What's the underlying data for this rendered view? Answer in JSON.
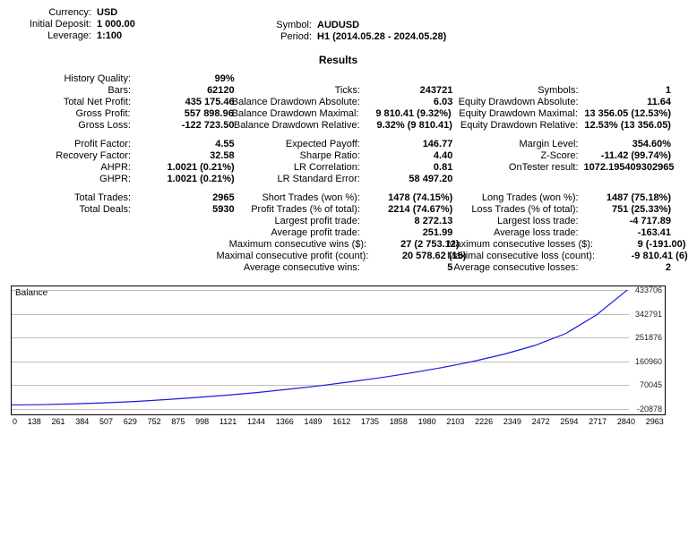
{
  "header": {
    "left": [
      {
        "label": "Currency:",
        "value": "USD"
      },
      {
        "label": "Initial Deposit:",
        "value": "1 000.00"
      },
      {
        "label": "Leverage:",
        "value": "1:100"
      }
    ],
    "mid": [
      {
        "label": "Symbol:",
        "value": "AUDUSD"
      },
      {
        "label": "Period:",
        "value": "H1 (2014.05.28 - 2024.05.28)"
      }
    ]
  },
  "results_title": "Results",
  "rows": [
    [
      {
        "l": "History Quality:",
        "v": "99%"
      },
      {
        "l": "",
        "v": ""
      },
      {
        "l": "",
        "v": ""
      }
    ],
    [
      {
        "l": "Bars:",
        "v": "62120"
      },
      {
        "l": "Ticks:",
        "v": "243721"
      },
      {
        "l": "Symbols:",
        "v": "1"
      }
    ],
    [
      {
        "l": "Total Net Profit:",
        "v": "435 175.46"
      },
      {
        "l": "Balance Drawdown Absolute:",
        "v": "6.03"
      },
      {
        "l": "Equity Drawdown Absolute:",
        "v": "11.64"
      }
    ],
    [
      {
        "l": "Gross Profit:",
        "v": "557 898.96"
      },
      {
        "l": "Balance Drawdown Maximal:",
        "v": "9 810.41 (9.32%)"
      },
      {
        "l": "Equity Drawdown Maximal:",
        "v": "13 356.05 (12.53%)"
      }
    ],
    [
      {
        "l": "Gross Loss:",
        "v": "-122 723.50"
      },
      {
        "l": "Balance Drawdown Relative:",
        "v": "9.32% (9 810.41)"
      },
      {
        "l": "Equity Drawdown Relative:",
        "v": "12.53% (13 356.05)"
      }
    ],
    "gap",
    [
      {
        "l": "Profit Factor:",
        "v": "4.55"
      },
      {
        "l": "Expected Payoff:",
        "v": "146.77"
      },
      {
        "l": "Margin Level:",
        "v": "354.60%"
      }
    ],
    [
      {
        "l": "Recovery Factor:",
        "v": "32.58"
      },
      {
        "l": "Sharpe Ratio:",
        "v": "4.40"
      },
      {
        "l": "Z-Score:",
        "v": "-11.42 (99.74%)"
      }
    ],
    [
      {
        "l": "AHPR:",
        "v": "1.0021 (0.21%)"
      },
      {
        "l": "LR Correlation:",
        "v": "0.81"
      },
      {
        "l": "OnTester result:",
        "v": "1072.195409302965"
      }
    ],
    [
      {
        "l": "GHPR:",
        "v": "1.0021 (0.21%)"
      },
      {
        "l": "LR Standard Error:",
        "v": "58 497.20"
      },
      {
        "l": "",
        "v": ""
      }
    ],
    "gap",
    [
      {
        "l": "Total Trades:",
        "v": "2965"
      },
      {
        "l": "Short Trades (won %):",
        "v": "1478 (74.15%)"
      },
      {
        "l": "Long Trades (won %):",
        "v": "1487 (75.18%)"
      }
    ],
    [
      {
        "l": "Total Deals:",
        "v": "5930"
      },
      {
        "l": "Profit Trades (% of total):",
        "v": "2214 (74.67%)"
      },
      {
        "l": "Loss Trades (% of total):",
        "v": "751 (25.33%)"
      }
    ],
    [
      {
        "l": "",
        "v": ""
      },
      {
        "l": "Largest profit trade:",
        "v": "8 272.13"
      },
      {
        "l": "Largest loss trade:",
        "v": "-4 717.89"
      }
    ],
    [
      {
        "l": "",
        "v": ""
      },
      {
        "l": "Average profit trade:",
        "v": "251.99"
      },
      {
        "l": "Average loss trade:",
        "v": "-163.41"
      }
    ],
    [
      {
        "l": "",
        "v": ""
      },
      {
        "l": "Maximum consecutive wins ($):",
        "v": "27 (2 753.12)"
      },
      {
        "l": "Maximum consecutive losses ($):",
        "v": "9 (-191.00)"
      }
    ],
    [
      {
        "l": "",
        "v": ""
      },
      {
        "l": "Maximal consecutive profit (count):",
        "v": "20 578.62 (15)"
      },
      {
        "l": "Maximal consecutive loss (count):",
        "v": "-9 810.41 (6)"
      }
    ],
    [
      {
        "l": "",
        "v": ""
      },
      {
        "l": "Average consecutive wins:",
        "v": "5"
      },
      {
        "l": "Average consecutive losses:",
        "v": "2"
      }
    ]
  ],
  "chart": {
    "title": "Balance",
    "y_min": -20878,
    "y_max": 433706,
    "y_ticks": [
      433706,
      342791,
      251876,
      160960,
      70045,
      -20878
    ],
    "x_ticks": [
      0,
      138,
      261,
      384,
      507,
      629,
      752,
      875,
      998,
      1121,
      1244,
      1366,
      1489,
      1612,
      1735,
      1858,
      1980,
      2103,
      2226,
      2349,
      2472,
      2594,
      2717,
      2840,
      2963
    ],
    "line_color": "#1a1adf",
    "grid_color": "#bdbdbd",
    "points": [
      [
        0,
        1000
      ],
      [
        148,
        2500
      ],
      [
        296,
        5000
      ],
      [
        445,
        9000
      ],
      [
        593,
        14000
      ],
      [
        741,
        21000
      ],
      [
        889,
        29000
      ],
      [
        1038,
        38000
      ],
      [
        1186,
        48000
      ],
      [
        1334,
        60000
      ],
      [
        1483,
        73000
      ],
      [
        1631,
        88000
      ],
      [
        1779,
        104000
      ],
      [
        1927,
        122000
      ],
      [
        2076,
        142000
      ],
      [
        2224,
        165000
      ],
      [
        2372,
        192000
      ],
      [
        2520,
        225000
      ],
      [
        2669,
        270000
      ],
      [
        2817,
        340000
      ],
      [
        2965,
        433706
      ]
    ]
  }
}
